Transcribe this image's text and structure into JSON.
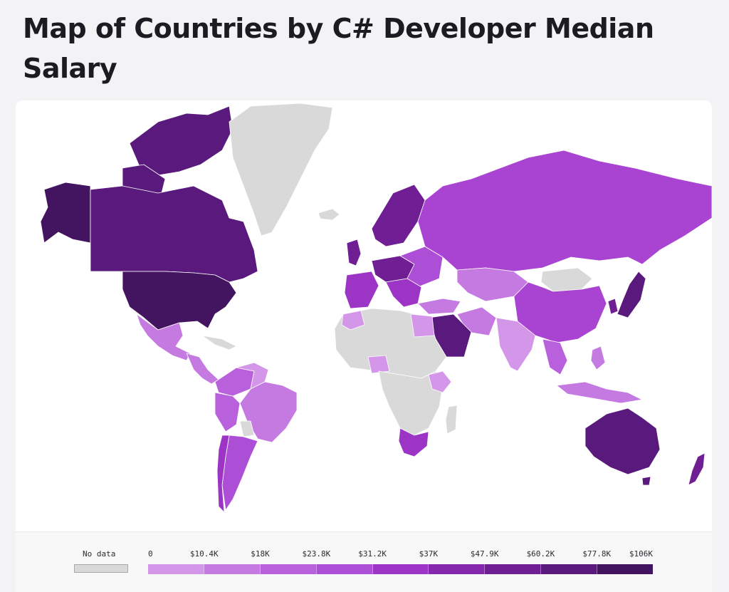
{
  "title": "Map of Countries by C# Developer Median Salary",
  "legend": {
    "no_data_label": "No data",
    "no_data_color": "#d9d9d9",
    "ticks": [
      "0",
      "$10.4K",
      "$18K",
      "$23.8K",
      "$31.2K",
      "$37K",
      "$47.9K",
      "$60.2K",
      "$77.8K",
      "$106K"
    ],
    "colors": [
      "#d496e8",
      "#c57ae2",
      "#b961dc",
      "#ad4fd6",
      "#9c35c5",
      "#8628ad",
      "#6f1e94",
      "#5a1a7d",
      "#431560"
    ]
  },
  "icons": {
    "map": "world-map-icon"
  }
}
